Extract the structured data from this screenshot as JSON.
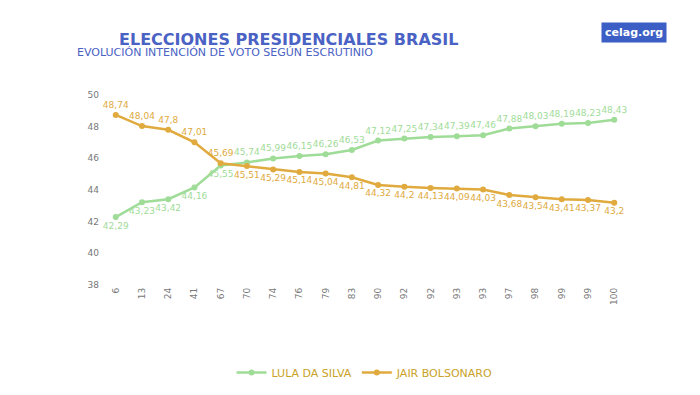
{
  "chart_data": {
    "type": "line",
    "title": "ELECCIONES PRESIDENCIALES BRASIL",
    "subtitle": "EVOLUCIÓN INTENCIÓN DE VOTO SEGÚN ESCRUTINIO",
    "annotations": [
      "celag.org"
    ],
    "categories": [
      "6",
      "13",
      "24",
      "41",
      "67",
      "70",
      "74",
      "76",
      "79",
      "83",
      "90",
      "92",
      "92",
      "93",
      "93",
      "97",
      "98",
      "99",
      "99",
      "100"
    ],
    "series": [
      {
        "name": "LULA DA SILVA",
        "color": "#9fdc98",
        "values": [
          42.29,
          43.23,
          43.42,
          44.16,
          45.55,
          45.74,
          45.99,
          46.15,
          46.26,
          46.53,
          47.12,
          47.25,
          47.34,
          47.39,
          47.46,
          47.88,
          48.03,
          48.19,
          48.23,
          48.43
        ],
        "value_labels": [
          "42,29",
          "43,23",
          "43,42",
          "44,16",
          "45,55",
          "45,74",
          "45,99",
          "46,15",
          "46,26",
          "46,53",
          "47,12",
          "47,25",
          "47,34",
          "47,39",
          "47,46",
          "47,88",
          "48,03",
          "48,19",
          "48,23",
          "48,43"
        ]
      },
      {
        "name": "JAIR BOLSONARO",
        "color": "#e0aa3e",
        "values": [
          48.74,
          48.04,
          47.8,
          47.01,
          45.69,
          45.51,
          45.29,
          45.14,
          45.04,
          44.81,
          44.32,
          44.2,
          44.13,
          44.09,
          44.03,
          43.68,
          43.54,
          43.41,
          43.37,
          43.2
        ],
        "value_labels": [
          "48,74",
          "48,04",
          "47,8",
          "47,01",
          "45,69",
          "45,51",
          "45,29",
          "45,14",
          "45,04",
          "44,81",
          "44,32",
          "44,2",
          "44,13",
          "44,09",
          "44,03",
          "43,68",
          "43,54",
          "43,41",
          "43,37",
          "43,2"
        ]
      }
    ],
    "ylim": [
      38,
      50
    ],
    "yticks": [
      38,
      40,
      42,
      44,
      46,
      48,
      50
    ],
    "grid": false,
    "legend": "bottom",
    "data_labels": true,
    "marker": "circle"
  }
}
